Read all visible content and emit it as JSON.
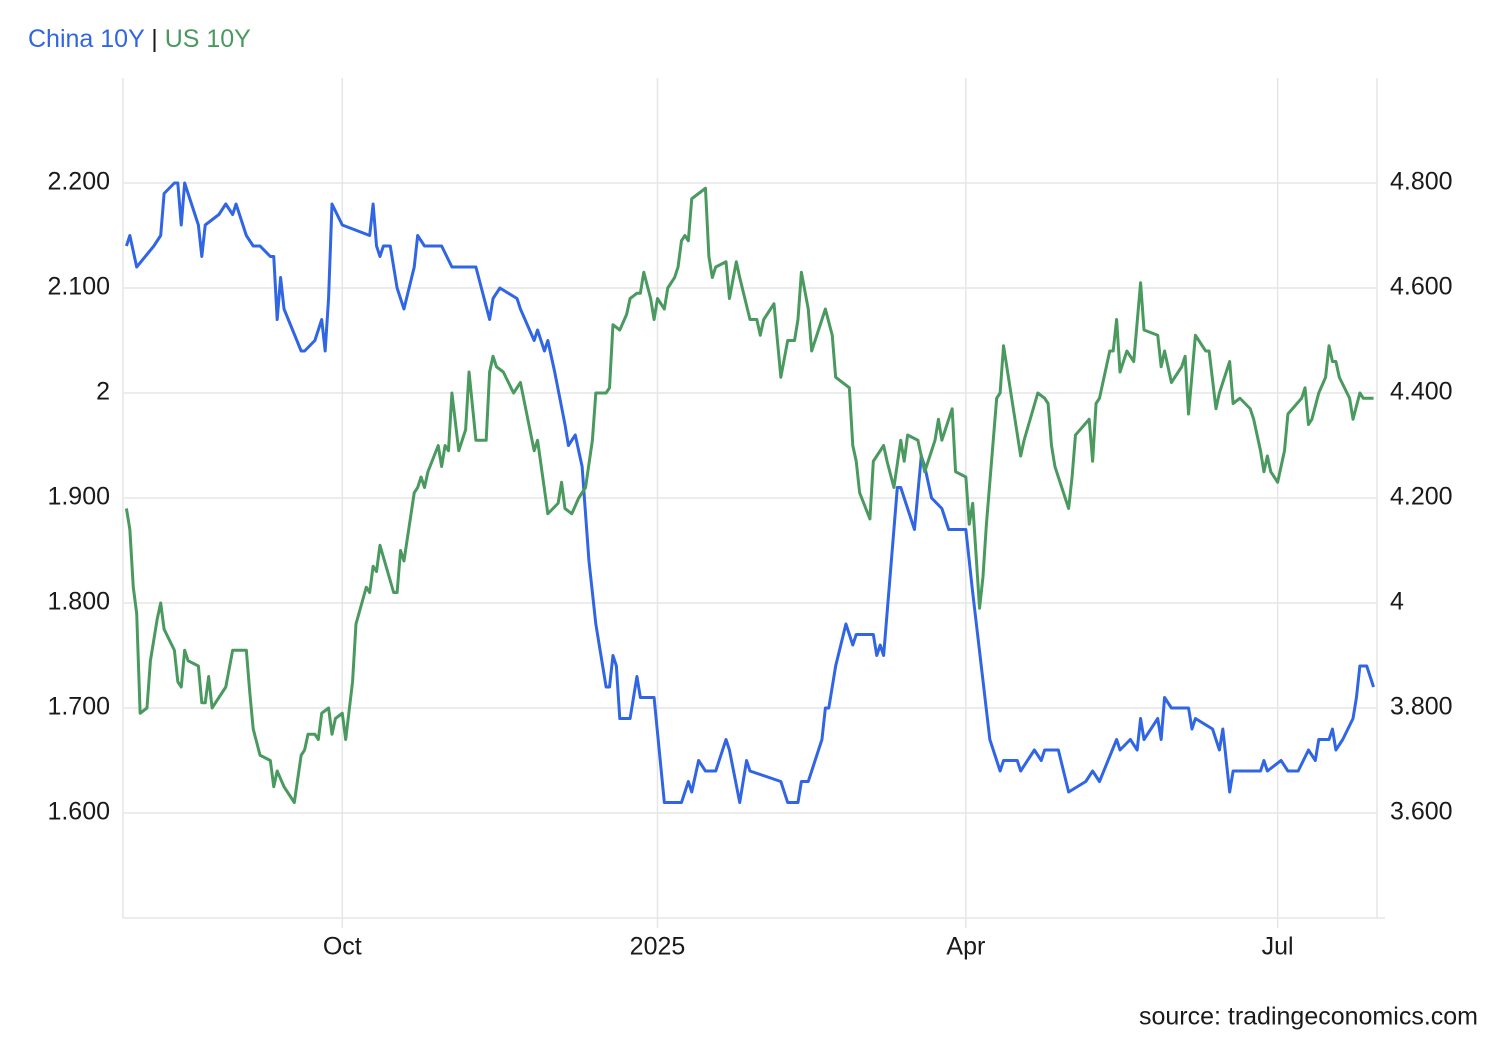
{
  "chart_data": {
    "type": "line",
    "title_separator": "|",
    "source": "source: tradingeconomics.com",
    "xlim": [
      0,
      366
    ],
    "xticks": [
      {
        "value": 64,
        "label": "Oct"
      },
      {
        "value": 156,
        "label": "2025"
      },
      {
        "value": 246,
        "label": "Apr"
      },
      {
        "value": 337,
        "label": "Jul"
      }
    ],
    "ylim": [
      1.5,
      2.3
    ],
    "yticks": [
      {
        "value": 1.6,
        "label": "1.600"
      },
      {
        "value": 1.7,
        "label": "1.700"
      },
      {
        "value": 1.8,
        "label": "1.800"
      },
      {
        "value": 1.9,
        "label": "1.900"
      },
      2,
      {
        "value": 2.1,
        "label": "2.100"
      },
      {
        "value": 2.2,
        "label": "2.200"
      }
    ],
    "y2lim": [
      3.4,
      5.0
    ],
    "y2ticks": [
      {
        "value": 3.6,
        "label": "3.600"
      },
      {
        "value": 3.8,
        "label": "3.800"
      },
      4,
      {
        "value": 4.2,
        "label": "4.200"
      },
      {
        "value": 4.4,
        "label": "4.400"
      },
      {
        "value": 4.6,
        "label": "4.600"
      },
      {
        "value": 4.8,
        "label": "4.800"
      }
    ],
    "grid": true,
    "series": [
      {
        "name": "China 10Y",
        "color": "#3065e3",
        "axis": "y",
        "x": [
          1,
          2,
          4,
          9,
          11,
          12,
          15,
          16,
          17,
          18,
          22,
          23,
          24,
          28,
          30,
          32,
          33,
          36,
          38,
          40,
          43,
          44,
          45,
          46,
          47,
          52,
          53,
          56,
          58,
          59,
          60,
          61,
          64,
          72,
          73,
          74,
          75,
          76,
          78,
          80,
          82,
          85,
          86,
          88,
          93,
          96,
          103,
          107,
          108,
          110,
          115,
          116,
          120,
          121,
          123,
          124,
          126,
          129,
          130,
          132,
          134,
          136,
          138,
          141,
          142,
          143,
          144,
          145,
          148,
          150,
          151,
          155,
          158,
          162,
          163,
          165,
          166,
          168,
          170,
          173,
          176,
          177,
          180,
          182,
          183,
          192,
          194,
          197,
          198,
          200,
          204,
          205,
          206,
          208,
          211,
          213,
          214,
          219,
          220,
          221,
          222,
          224,
          226,
          227,
          229,
          231,
          233,
          234,
          236,
          239,
          241,
          246,
          248,
          253,
          256,
          257,
          261,
          262,
          266,
          268,
          269,
          273,
          276,
          281,
          283,
          285,
          290,
          291,
          294,
          296,
          297,
          298,
          302,
          303,
          304,
          306,
          311,
          312,
          313,
          318,
          320,
          321,
          323,
          324,
          332,
          333,
          334,
          338,
          340,
          343,
          346,
          348,
          349,
          352,
          353,
          354,
          356,
          359,
          360,
          361,
          363,
          365
        ],
        "values": [
          2.14,
          2.15,
          2.12,
          2.14,
          2.15,
          2.19,
          2.2,
          2.2,
          2.16,
          2.2,
          2.16,
          2.13,
          2.16,
          2.17,
          2.18,
          2.17,
          2.18,
          2.15,
          2.14,
          2.14,
          2.13,
          2.13,
          2.07,
          2.11,
          2.08,
          2.04,
          2.04,
          2.05,
          2.07,
          2.04,
          2.09,
          2.18,
          2.16,
          2.15,
          2.18,
          2.14,
          2.13,
          2.14,
          2.14,
          2.1,
          2.08,
          2.12,
          2.15,
          2.14,
          2.14,
          2.12,
          2.12,
          2.07,
          2.09,
          2.1,
          2.09,
          2.08,
          2.05,
          2.06,
          2.04,
          2.05,
          2.02,
          1.97,
          1.95,
          1.96,
          1.93,
          1.84,
          1.78,
          1.72,
          1.72,
          1.75,
          1.74,
          1.69,
          1.69,
          1.73,
          1.71,
          1.71,
          1.61,
          1.61,
          1.61,
          1.63,
          1.62,
          1.65,
          1.64,
          1.64,
          1.67,
          1.66,
          1.61,
          1.65,
          1.64,
          1.63,
          1.61,
          1.61,
          1.63,
          1.63,
          1.67,
          1.7,
          1.7,
          1.74,
          1.78,
          1.76,
          1.77,
          1.77,
          1.75,
          1.76,
          1.75,
          1.83,
          1.91,
          1.91,
          1.89,
          1.87,
          1.94,
          1.93,
          1.9,
          1.89,
          1.87,
          1.87,
          1.81,
          1.67,
          1.64,
          1.65,
          1.65,
          1.64,
          1.66,
          1.65,
          1.66,
          1.66,
          1.62,
          1.63,
          1.64,
          1.63,
          1.67,
          1.66,
          1.67,
          1.66,
          1.69,
          1.67,
          1.69,
          1.67,
          1.71,
          1.7,
          1.7,
          1.68,
          1.69,
          1.68,
          1.66,
          1.68,
          1.62,
          1.64,
          1.64,
          1.65,
          1.64,
          1.65,
          1.64,
          1.64,
          1.66,
          1.65,
          1.67,
          1.67,
          1.68,
          1.66,
          1.67,
          1.69,
          1.71,
          1.74,
          1.74,
          1.72
        ]
      },
      {
        "name": "US 10Y",
        "color": "#4a9a60",
        "axis": "y2",
        "x": [
          1,
          2,
          3,
          4,
          5,
          7,
          8,
          10,
          11,
          12,
          15,
          16,
          17,
          18,
          19,
          22,
          23,
          24,
          25,
          26,
          28,
          30,
          32,
          36,
          37,
          38,
          40,
          43,
          44,
          45,
          47,
          50,
          52,
          53,
          54,
          56,
          57,
          58,
          60,
          61,
          62,
          64,
          65,
          67,
          68,
          71,
          72,
          73,
          74,
          75,
          79,
          80,
          81,
          82,
          85,
          86,
          87,
          88,
          89,
          92,
          93,
          94,
          95,
          96,
          98,
          100,
          101,
          103,
          106,
          107,
          108,
          109,
          111,
          114,
          116,
          120,
          121,
          124,
          127,
          128,
          129,
          131,
          133,
          135,
          137,
          138,
          141,
          142,
          143,
          145,
          147,
          148,
          150,
          151,
          152,
          154,
          155,
          156,
          158,
          159,
          161,
          162,
          163,
          164,
          165,
          166,
          170,
          171,
          172,
          173,
          176,
          177,
          179,
          180,
          183,
          185,
          186,
          187,
          190,
          192,
          194,
          196,
          197,
          198,
          200,
          201,
          205,
          207,
          208,
          212,
          213,
          214,
          215,
          218,
          219,
          221,
          222,
          223,
          225,
          227,
          228,
          229,
          232,
          234,
          235,
          237,
          238,
          239,
          242,
          243,
          246,
          247,
          248,
          250,
          251,
          252,
          255,
          256,
          257,
          262,
          263,
          267,
          269,
          270,
          271,
          272,
          275,
          276,
          277,
          278,
          282,
          283,
          284,
          285,
          288,
          289,
          290,
          291,
          293,
          295,
          297,
          298,
          302,
          303,
          304,
          306,
          309,
          310,
          311,
          313,
          316,
          317,
          319,
          320,
          323,
          324,
          326,
          329,
          330,
          332,
          333,
          334,
          335,
          337,
          338,
          339,
          340,
          344,
          345,
          346,
          347,
          349,
          351,
          352,
          353,
          354,
          355,
          358,
          359,
          361,
          362,
          365
        ],
        "values": [
          4.18,
          4.14,
          4.03,
          3.98,
          3.79,
          3.8,
          3.89,
          3.97,
          4.0,
          3.95,
          3.91,
          3.85,
          3.84,
          3.91,
          3.89,
          3.88,
          3.81,
          3.81,
          3.86,
          3.8,
          3.82,
          3.84,
          3.91,
          3.91,
          3.83,
          3.76,
          3.71,
          3.7,
          3.65,
          3.68,
          3.65,
          3.62,
          3.71,
          3.72,
          3.75,
          3.75,
          3.74,
          3.79,
          3.8,
          3.75,
          3.78,
          3.79,
          3.74,
          3.85,
          3.96,
          4.03,
          4.02,
          4.07,
          4.06,
          4.11,
          4.02,
          4.02,
          4.1,
          4.08,
          4.21,
          4.22,
          4.24,
          4.22,
          4.25,
          4.3,
          4.26,
          4.3,
          4.29,
          4.4,
          4.29,
          4.33,
          4.44,
          4.31,
          4.31,
          4.44,
          4.47,
          4.45,
          4.44,
          4.4,
          4.42,
          4.29,
          4.31,
          4.17,
          4.19,
          4.23,
          4.18,
          4.17,
          4.2,
          4.22,
          4.31,
          4.4,
          4.4,
          4.41,
          4.53,
          4.52,
          4.55,
          4.58,
          4.59,
          4.59,
          4.63,
          4.58,
          4.54,
          4.58,
          4.56,
          4.6,
          4.62,
          4.64,
          4.69,
          4.7,
          4.69,
          4.77,
          4.79,
          4.66,
          4.62,
          4.64,
          4.65,
          4.58,
          4.65,
          4.62,
          4.54,
          4.54,
          4.51,
          4.54,
          4.57,
          4.43,
          4.5,
          4.5,
          4.54,
          4.63,
          4.56,
          4.48,
          4.56,
          4.51,
          4.43,
          4.41,
          4.3,
          4.27,
          4.21,
          4.16,
          4.27,
          4.29,
          4.3,
          4.27,
          4.22,
          4.31,
          4.27,
          4.32,
          4.31,
          4.25,
          4.27,
          4.31,
          4.35,
          4.31,
          4.37,
          4.25,
          4.24,
          4.15,
          4.19,
          3.99,
          4.05,
          4.15,
          4.39,
          4.4,
          4.49,
          4.28,
          4.31,
          4.4,
          4.39,
          4.38,
          4.3,
          4.26,
          4.2,
          4.18,
          4.24,
          4.32,
          4.35,
          4.27,
          4.38,
          4.39,
          4.48,
          4.48,
          4.54,
          4.44,
          4.48,
          4.46,
          4.61,
          4.52,
          4.51,
          4.45,
          4.48,
          4.42,
          4.45,
          4.47,
          4.36,
          4.51,
          4.48,
          4.48,
          4.37,
          4.4,
          4.46,
          4.38,
          4.39,
          4.37,
          4.35,
          4.29,
          4.25,
          4.28,
          4.25,
          4.23,
          4.26,
          4.29,
          4.36,
          4.39,
          4.41,
          4.34,
          4.35,
          4.4,
          4.43,
          4.49,
          4.46,
          4.46,
          4.43,
          4.39,
          4.35,
          4.4,
          4.39,
          4.39
        ]
      }
    ]
  }
}
